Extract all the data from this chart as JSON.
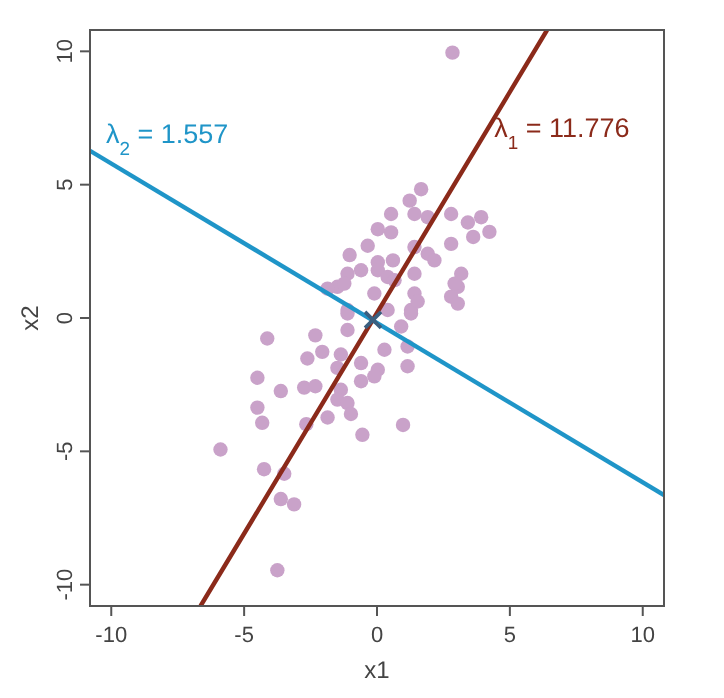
{
  "chart_data": {
    "type": "scatter",
    "xlabel": "x1",
    "ylabel": "x2",
    "xlim": [
      -10.8,
      10.8
    ],
    "ylim": [
      -10.8,
      10.8
    ],
    "xticks": [
      -10,
      -5,
      0,
      5,
      10
    ],
    "yticks": [
      -10,
      -5,
      0,
      5,
      10
    ],
    "grid": false,
    "series": [
      {
        "marker": "circle",
        "color": "#c9a2c9",
        "x": [
          2.84,
          1.66,
          1.23,
          0.53,
          2.79,
          3.92,
          3.42,
          4.23,
          3.62,
          1.41,
          1.91,
          0.03,
          0.53,
          -0.35,
          -1.03,
          0.6,
          0.03,
          1.41,
          1.91,
          2.16,
          2.79,
          -1.11,
          -0.6,
          0.03,
          0.4,
          1.41,
          3.17,
          3.04,
          -1.49,
          -1.86,
          -0.1,
          0.66,
          1.41,
          2.79,
          3.04,
          -1.11,
          0.4,
          1.28,
          -1.23,
          2.92,
          1.53,
          1.28,
          -1.11,
          0.91,
          -1.11,
          1.15,
          0.28,
          -4.13,
          -2.32,
          -2.06,
          -2.62,
          -1.36,
          -1.49,
          -0.6,
          0.03,
          -0.1,
          -0.6,
          1.15,
          -4.5,
          -3.62,
          -2.74,
          -2.32,
          -1.36,
          -1.49,
          -1.11,
          -4.5,
          -4.32,
          -1.86,
          -0.98,
          -2.66,
          -0.55,
          0.98,
          -5.89,
          -4.25,
          -3.49,
          -3.62,
          -3.12,
          -3.75
        ],
        "values": [
          9.95,
          4.83,
          4.4,
          3.9,
          3.9,
          3.78,
          3.58,
          3.23,
          3.04,
          3.9,
          3.78,
          3.33,
          3.21,
          2.71,
          2.36,
          2.16,
          2.09,
          2.66,
          2.41,
          2.16,
          2.78,
          1.66,
          1.79,
          1.79,
          1.54,
          1.66,
          1.66,
          1.17,
          1.17,
          1.1,
          0.92,
          1.42,
          0.92,
          0.8,
          0.54,
          0.3,
          0.3,
          0.3,
          1.29,
          1.29,
          0.62,
          0.17,
          0.17,
          -0.32,
          -0.45,
          -1.07,
          -1.19,
          -0.77,
          -0.65,
          -1.27,
          -1.52,
          -1.37,
          -1.87,
          -1.69,
          -1.94,
          -2.19,
          -2.37,
          -1.81,
          -2.24,
          -2.74,
          -2.61,
          -2.56,
          -2.69,
          -3.06,
          -3.19,
          -3.36,
          -3.93,
          -3.73,
          -3.6,
          -3.98,
          -4.38,
          -4.01,
          -4.93,
          -5.67,
          -5.84,
          -6.79,
          -6.99,
          -9.46
        ]
      },
      {
        "type": "line",
        "name": "λ$_{2}$ = 1.557",
        "color": "#1f95c8",
        "x": [
          -10.8,
          10.8
        ],
        "values": [
          6.27,
          -6.64
        ]
      },
      {
        "type": "line",
        "name": "λ$_{1}$ = 11.776",
        "color": "#8b2a1a",
        "x": [
          -6.64,
          3.81,
          6.4
        ],
        "values": [
          -10.8,
          6.5,
          10.8
        ]
      },
      {
        "type": "scatter",
        "marker": "cross",
        "color": "#3a5f80",
        "x": [
          -0.15
        ],
        "values": [
          -0.07
        ]
      }
    ]
  }
}
